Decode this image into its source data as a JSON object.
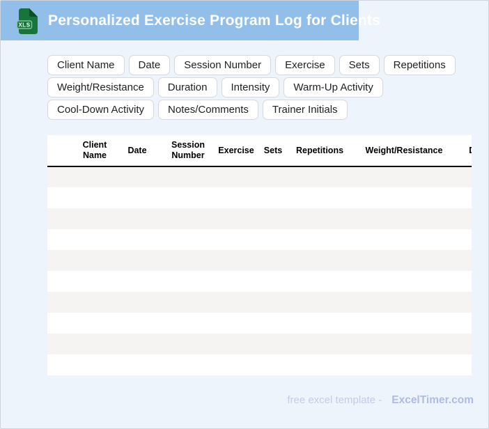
{
  "header": {
    "title": "Personalized Exercise Program Log for Clients",
    "file_badge_label": "XLS"
  },
  "field_tags": [
    "Client Name",
    "Date",
    "Session Number",
    "Exercise",
    "Sets",
    "Repetitions",
    "Weight/Resistance",
    "Duration",
    "Intensity",
    "Warm-Up Activity",
    "Cool-Down Activity",
    "Notes/Comments",
    "Trainer Initials"
  ],
  "table": {
    "columns": [
      "",
      "Client Name",
      "Date",
      "Session Number",
      "Exercise",
      "Sets",
      "Repetitions",
      "Weight/Resistance",
      "Duration"
    ],
    "empty_row_count": 10
  },
  "footer": {
    "text": "free excel template -",
    "brand": "ExcelTimer.com"
  },
  "colors": {
    "banner": "#92bfe9",
    "page_bg": "#eef4fc",
    "row_stripe": "#f5f4f2",
    "icon_green": "#17753c",
    "icon_fold": "#0c4f27",
    "icon_badge_border": "#7cc697",
    "footer_text": "#c4cce4",
    "footer_brand": "#aebbe8",
    "chip_border": "#d8d8d8",
    "chip_text": "#202124",
    "table_header_text": "#000000",
    "title_text": "#ffffff"
  }
}
